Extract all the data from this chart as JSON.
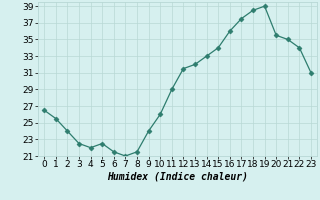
{
  "x": [
    0,
    1,
    2,
    3,
    4,
    5,
    6,
    7,
    8,
    9,
    10,
    11,
    12,
    13,
    14,
    15,
    16,
    17,
    18,
    19,
    20,
    21,
    22,
    23
  ],
  "y": [
    26.5,
    25.5,
    24,
    22.5,
    22,
    22.5,
    21.5,
    21,
    21.5,
    24,
    26,
    29,
    31.5,
    32,
    33,
    34,
    36,
    37.5,
    38.5,
    39,
    35.5,
    35,
    34,
    31
  ],
  "line_color": "#2e7d6e",
  "marker": "D",
  "marker_size": 2.5,
  "bg_color": "#d6f0ef",
  "grid_color": "#b8d8d5",
  "xlabel": "Humidex (Indice chaleur)",
  "xlim": [
    -0.5,
    23.5
  ],
  "ylim": [
    21,
    39.5
  ],
  "yticks": [
    21,
    23,
    25,
    27,
    29,
    31,
    33,
    35,
    37,
    39
  ],
  "xticks": [
    0,
    1,
    2,
    3,
    4,
    5,
    6,
    7,
    8,
    9,
    10,
    11,
    12,
    13,
    14,
    15,
    16,
    17,
    18,
    19,
    20,
    21,
    22,
    23
  ],
  "xlabel_fontsize": 7,
  "tick_fontsize": 6.5
}
